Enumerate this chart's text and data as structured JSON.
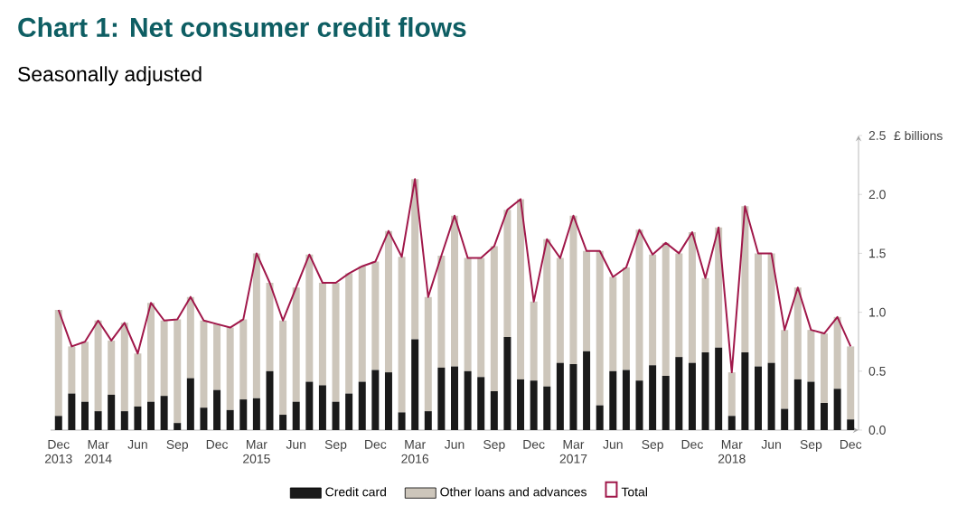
{
  "chart_data": {
    "type": "bar",
    "title": "Chart 1: Net consumer credit flows",
    "subtitle": "Seasonally adjusted",
    "ylabel": "£ billions",
    "categories": [
      "Dec 2013",
      null,
      null,
      "Mar 2014",
      null,
      null,
      "Jun",
      null,
      null,
      "Sep",
      null,
      null,
      "Dec",
      null,
      null,
      "Mar 2015",
      null,
      null,
      "Jun",
      null,
      null,
      "Sep",
      null,
      null,
      "Dec",
      null,
      null,
      "Mar 2016",
      null,
      null,
      "Jun",
      null,
      null,
      "Sep",
      null,
      null,
      "Dec",
      null,
      null,
      "Mar 2017",
      null,
      null,
      "Jun",
      null,
      null,
      "Sep",
      null,
      null,
      "Dec",
      null,
      null,
      "Mar 2018",
      null,
      null,
      "Jun",
      null,
      null,
      "Sep",
      null,
      null,
      "Dec"
    ],
    "stacked": true,
    "series": [
      {
        "name": "Credit card",
        "color": "#1a1a1a",
        "values": [
          0.12,
          0.31,
          0.24,
          0.16,
          0.3,
          0.16,
          0.2,
          0.24,
          0.29,
          0.06,
          0.44,
          0.19,
          0.34,
          0.17,
          0.26,
          0.27,
          0.5,
          0.13,
          0.24,
          0.41,
          0.38,
          0.24,
          0.31,
          0.41,
          0.51,
          0.49,
          0.15,
          0.77,
          0.16,
          0.53,
          0.54,
          0.5,
          0.45,
          0.33,
          0.79,
          0.43,
          0.42,
          0.37,
          0.57,
          0.56,
          0.67,
          0.21,
          0.5,
          0.51,
          0.42,
          0.55,
          0.46,
          0.62,
          0.57,
          0.66,
          0.7,
          0.12,
          0.66,
          0.54,
          0.57,
          0.18,
          0.43,
          0.41,
          0.23,
          0.35,
          0.09
        ]
      },
      {
        "name": "Other loans and advances",
        "color": "#cdc6bb",
        "values": [
          0.9,
          0.4,
          0.51,
          0.77,
          0.46,
          0.75,
          0.45,
          0.84,
          0.64,
          0.88,
          0.69,
          0.74,
          0.56,
          0.7,
          0.68,
          1.23,
          0.75,
          0.8,
          0.97,
          1.08,
          0.87,
          1.01,
          1.02,
          0.98,
          0.92,
          1.2,
          1.32,
          1.36,
          0.97,
          0.95,
          1.28,
          0.96,
          1.01,
          1.23,
          1.08,
          1.53,
          0.67,
          1.25,
          0.89,
          1.26,
          0.85,
          1.31,
          0.8,
          0.87,
          1.28,
          0.94,
          1.13,
          0.88,
          1.11,
          0.63,
          1.02,
          0.37,
          1.24,
          0.96,
          0.93,
          0.67,
          0.78,
          0.44,
          0.59,
          0.61,
          0.62
        ]
      },
      {
        "name": "Total",
        "type": "line",
        "color": "#a0184a",
        "values": [
          1.02,
          0.71,
          0.75,
          0.93,
          0.76,
          0.91,
          0.65,
          1.08,
          0.93,
          0.94,
          1.13,
          0.93,
          0.9,
          0.87,
          0.94,
          1.5,
          1.25,
          0.93,
          1.21,
          1.49,
          1.25,
          1.25,
          1.33,
          1.39,
          1.43,
          1.69,
          1.47,
          2.13,
          1.13,
          1.48,
          1.82,
          1.46,
          1.46,
          1.56,
          1.87,
          1.96,
          1.09,
          1.62,
          1.46,
          1.82,
          1.52,
          1.52,
          1.3,
          1.38,
          1.7,
          1.49,
          1.59,
          1.5,
          1.68,
          1.29,
          1.72,
          0.49,
          1.9,
          1.5,
          1.5,
          0.85,
          1.21,
          0.85,
          0.82,
          0.96,
          0.71
        ]
      }
    ],
    "ylim": [
      0,
      2.5
    ],
    "yticks": [
      {
        "value": 0,
        "label": "0.0"
      },
      {
        "value": 0.5,
        "label": "0.5"
      },
      {
        "value": 1,
        "label": "1.0"
      },
      {
        "value": 1.5,
        "label": "1.5"
      },
      {
        "value": 2,
        "label": "2.0"
      },
      {
        "value": 2.5,
        "label": "2.5"
      }
    ],
    "legend": "bottom",
    "grid": false
  }
}
